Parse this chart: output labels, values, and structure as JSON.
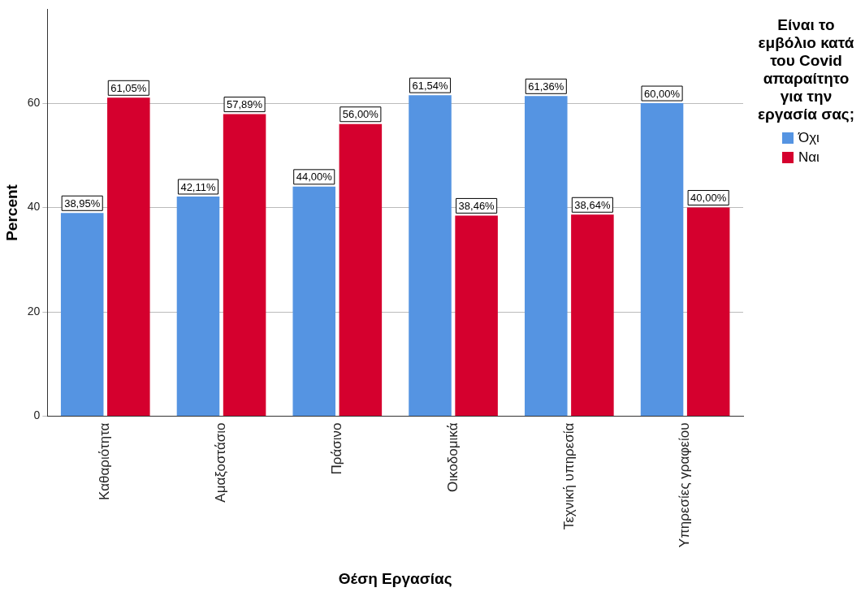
{
  "chart_data": {
    "type": "bar",
    "xlabel": "Θέση Εργασίας",
    "ylabel": "Percent",
    "legend_title": "Είναι το εμβόλιο κατά του Covid απαραίτητο για την εργασία σας;",
    "categories": [
      "Καθαριότητα",
      "Αμαξοστάσιο",
      "Πράσινο",
      "Οικοδομικά",
      "Τεχνική υπηρεσία",
      "Υπηρεσίες γραφείου"
    ],
    "series": [
      {
        "name": "Όχι",
        "color": "#5594e2",
        "values": [
          38.95,
          42.11,
          44.0,
          61.54,
          61.36,
          60.0
        ],
        "value_labels": [
          "38,95%",
          "42,11%",
          "44,00%",
          "61,54%",
          "61,36%",
          "60,00%"
        ]
      },
      {
        "name": "Ναι",
        "color": "#d5002e",
        "values": [
          61.05,
          57.89,
          56.0,
          38.46,
          38.64,
          40.0
        ],
        "value_labels": [
          "61,05%",
          "57,89%",
          "56,00%",
          "38,46%",
          "38,64%",
          "40,00%"
        ]
      }
    ],
    "ylim": [
      0,
      78
    ],
    "yticks": [
      0,
      20,
      40,
      60
    ],
    "grid": "y",
    "legend": "right"
  }
}
